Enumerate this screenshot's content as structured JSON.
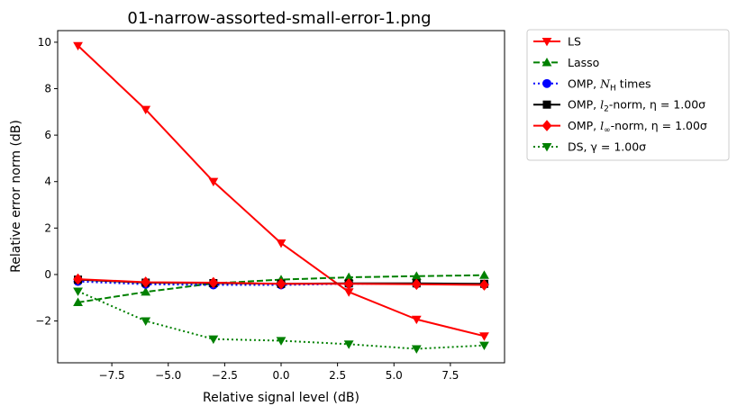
{
  "chart_data": {
    "type": "line",
    "title": "01-narrow-assorted-small-error-1.png",
    "xlabel": "Relative signal level (dB)",
    "ylabel": "Relative error norm (dB)",
    "xlim": [
      -9.9,
      9.9
    ],
    "ylim": [
      -3.8,
      10.5
    ],
    "xticks": [
      -7.5,
      -5.0,
      -2.5,
      0.0,
      2.5,
      5.0,
      7.5
    ],
    "xtick_labels": [
      "−7.5",
      "−5.0",
      "−2.5",
      "0.0",
      "2.5",
      "5.0",
      "7.5"
    ],
    "yticks": [
      -2,
      0,
      2,
      4,
      6,
      8,
      10
    ],
    "ytick_labels": [
      "−2",
      "0",
      "2",
      "4",
      "6",
      "8",
      "10"
    ],
    "grid": false,
    "legend_position": "outside-top-right",
    "x": [
      -9,
      -6,
      -3,
      0,
      3,
      6,
      9
    ],
    "series": [
      {
        "name": "LS",
        "color": "#ff0000",
        "dash": "solid",
        "marker": "triangle-down",
        "values": [
          9.85,
          7.1,
          4.0,
          1.35,
          -0.75,
          -1.93,
          -2.65
        ]
      },
      {
        "name": "Lasso",
        "color": "#008000",
        "dash": "dashed",
        "marker": "triangle-up",
        "values": [
          -1.2,
          -0.75,
          -0.38,
          -0.22,
          -0.12,
          -0.07,
          -0.03
        ]
      },
      {
        "name": "OMP, N_H times",
        "color": "#0000ff",
        "dash": "dotted",
        "marker": "circle",
        "values": [
          -0.3,
          -0.42,
          -0.45,
          -0.45,
          -0.4,
          -0.4,
          -0.42
        ]
      },
      {
        "name": "OMP, l_2-norm, η = 1.00σ",
        "color": "#000000",
        "dash": "solid",
        "marker": "square",
        "values": [
          -0.22,
          -0.35,
          -0.37,
          -0.4,
          -0.38,
          -0.38,
          -0.4
        ]
      },
      {
        "name": "OMP, l_∞-norm, η = 1.00σ",
        "color": "#ff0000",
        "dash": "solid",
        "marker": "diamond",
        "values": [
          -0.2,
          -0.33,
          -0.35,
          -0.4,
          -0.4,
          -0.42,
          -0.45
        ]
      },
      {
        "name": "DS, γ = 1.00σ",
        "color": "#008000",
        "dash": "dotted",
        "marker": "triangle-down",
        "values": [
          -0.72,
          -2.0,
          -2.78,
          -2.85,
          -3.0,
          -3.2,
          -3.05
        ]
      }
    ],
    "legend": [
      {
        "prefix": "LS",
        "italic": "",
        "sub": "",
        "suffix": ""
      },
      {
        "prefix": "Lasso",
        "italic": "",
        "sub": "",
        "suffix": ""
      },
      {
        "prefix": "OMP, ",
        "italic": "N",
        "sub": "H",
        "suffix": " times"
      },
      {
        "prefix": "OMP, ",
        "italic": "l",
        "sub": "2",
        "suffix": "-norm, η = 1.00σ"
      },
      {
        "prefix": "OMP, ",
        "italic": "l",
        "sub": "∞",
        "suffix": "-norm, η = 1.00σ"
      },
      {
        "prefix": "DS, γ = 1.00σ",
        "italic": "",
        "sub": "",
        "suffix": ""
      }
    ]
  }
}
